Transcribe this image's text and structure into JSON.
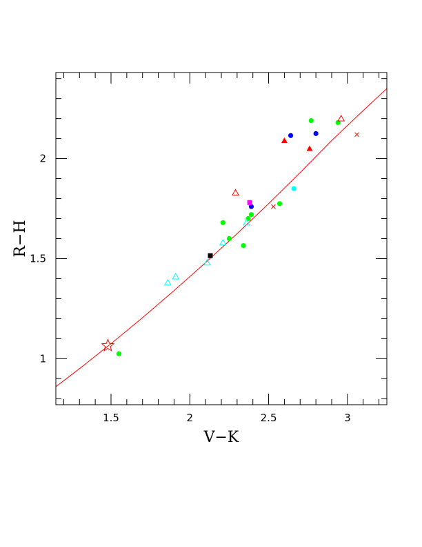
{
  "chart_data": {
    "type": "scatter",
    "title": "",
    "xlabel": "V−K",
    "ylabel": "R−H",
    "xlim": [
      1.15,
      3.25
    ],
    "ylim": [
      0.77,
      2.43
    ],
    "x_ticks": [
      {
        "value": 1.5,
        "label": "1.5"
      },
      {
        "value": 2.0,
        "label": "2"
      },
      {
        "value": 2.5,
        "label": "2.5"
      },
      {
        "value": 3.0,
        "label": "3"
      }
    ],
    "y_ticks": [
      {
        "value": 1.0,
        "label": "1"
      },
      {
        "value": 1.5,
        "label": "1.5"
      },
      {
        "value": 2.0,
        "label": "2"
      }
    ],
    "x_minor_step": 0.1,
    "y_minor_step": 0.1,
    "grid": false,
    "legend": "none",
    "curve": {
      "color": "#ff0000",
      "x": [
        1.15,
        1.3,
        1.5,
        1.7,
        1.9,
        2.1,
        2.3,
        2.5,
        2.7,
        2.9,
        3.1,
        3.25
      ],
      "y": [
        0.86,
        0.95,
        1.075,
        1.205,
        1.34,
        1.48,
        1.625,
        1.775,
        1.93,
        2.09,
        2.24,
        2.35
      ]
    },
    "series": [
      {
        "marker": "filled-circle",
        "color": "#00ff00",
        "points": [
          [
            1.55,
            1.025
          ],
          [
            2.21,
            1.68
          ],
          [
            2.25,
            1.6
          ],
          [
            2.34,
            1.565
          ],
          [
            2.37,
            1.7
          ],
          [
            2.39,
            1.72
          ],
          [
            2.57,
            1.775
          ],
          [
            2.77,
            2.19
          ],
          [
            2.94,
            2.18
          ]
        ]
      },
      {
        "marker": "open-triangle",
        "color": "#00ffff",
        "points": [
          [
            1.86,
            1.38
          ],
          [
            1.91,
            1.41
          ],
          [
            2.11,
            1.48
          ],
          [
            2.21,
            1.58
          ],
          [
            2.36,
            1.68
          ]
        ]
      },
      {
        "marker": "open-triangle",
        "color": "#ff0000",
        "points": [
          [
            2.29,
            1.83
          ],
          [
            2.96,
            2.2
          ]
        ]
      },
      {
        "marker": "filled-triangle",
        "color": "#ff0000",
        "points": [
          [
            2.6,
            2.09
          ],
          [
            2.76,
            2.05
          ]
        ]
      },
      {
        "marker": "filled-circle",
        "color": "#0000ff",
        "points": [
          [
            2.39,
            1.76
          ],
          [
            2.64,
            2.115
          ],
          [
            2.8,
            2.125
          ]
        ]
      },
      {
        "marker": "filled-circle",
        "color": "#00ffff",
        "points": [
          [
            2.66,
            1.85
          ]
        ]
      },
      {
        "marker": "filled-square",
        "color": "#ff00ff",
        "points": [
          [
            2.38,
            1.78
          ]
        ]
      },
      {
        "marker": "filled-square",
        "color": "#000000",
        "points": [
          [
            2.13,
            1.515
          ]
        ]
      },
      {
        "marker": "cross",
        "color": "#ff0000",
        "points": [
          [
            2.53,
            1.76
          ],
          [
            3.06,
            2.12
          ]
        ]
      },
      {
        "marker": "open-star",
        "color": "#ff0000",
        "points": [
          [
            1.48,
            1.065
          ]
        ]
      }
    ]
  }
}
